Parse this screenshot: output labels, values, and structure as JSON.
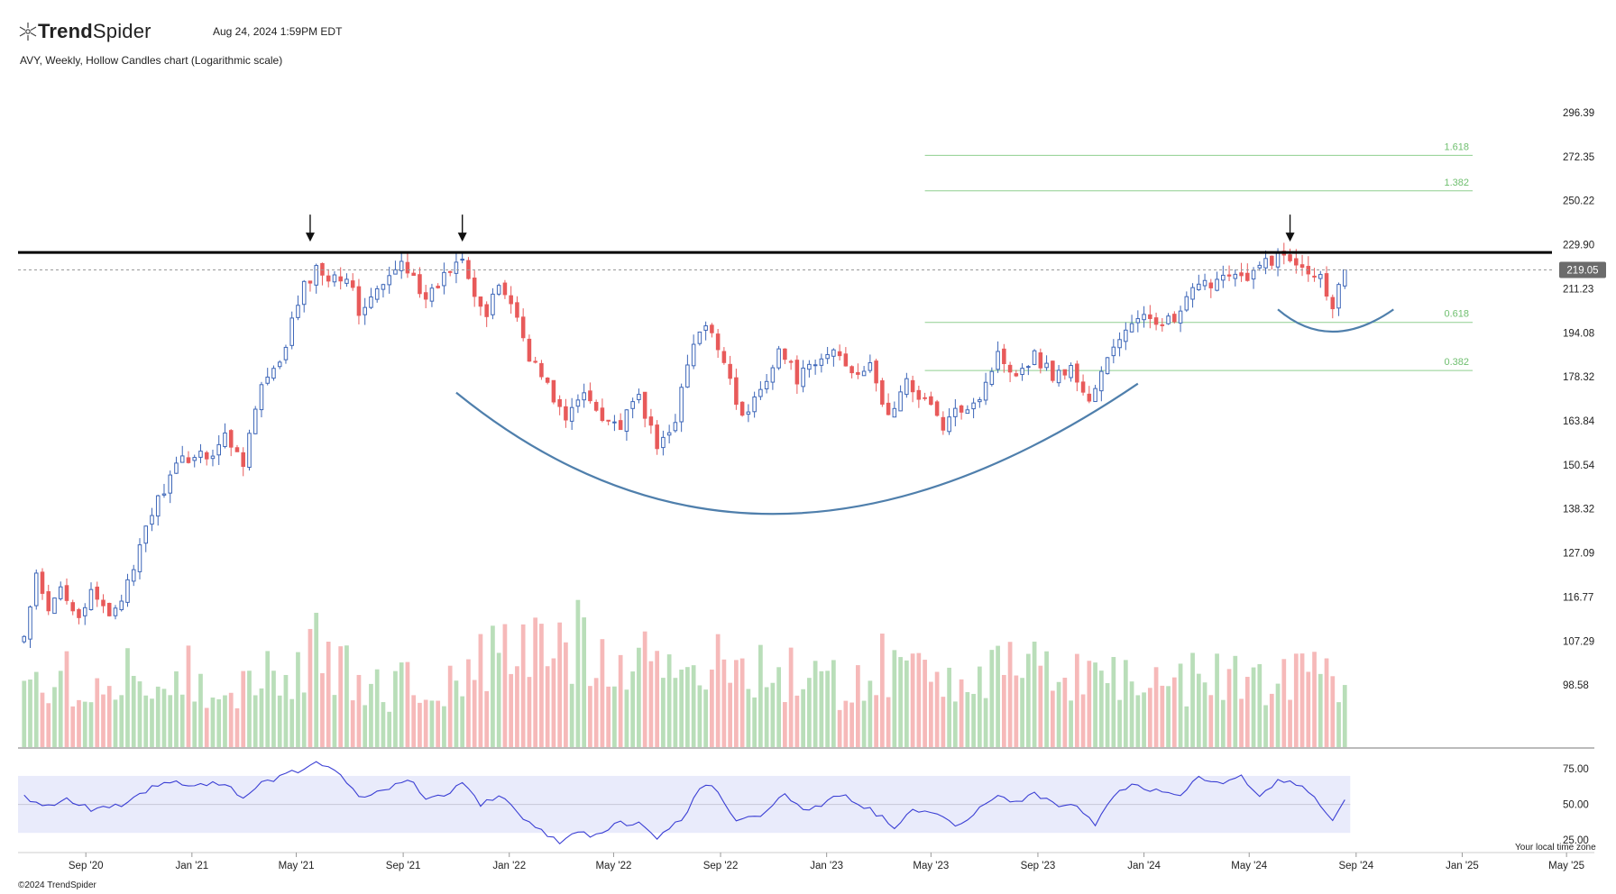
{
  "header": {
    "brand_part1": "Trend",
    "brand_part2": "Spider",
    "timestamp": "Aug 24, 2024 1:59PM EDT",
    "subtitle": "AVY, Weekly, Hollow Candles chart (Logarithmic scale)",
    "logo_icon": "trendspider-logo-icon"
  },
  "footer": {
    "copyright": "©2024 TrendSpider",
    "timezone_note": "Your local time zone"
  },
  "colors": {
    "up": "#3d66b8",
    "down": "#e85a5a",
    "vol_up": "#b9deb9",
    "vol_down": "#f6b9b9",
    "fib": "#8fcf8f",
    "curve": "#4f7fac",
    "rsi": "#3b3fd4",
    "rsi_band": "#e9ebfb",
    "resistance": "#000000",
    "price_tag": "#6b6b6b"
  },
  "chart_data": {
    "type": "candlestick",
    "ticker": "AVY",
    "interval": "Weekly",
    "style": "Hollow Candles",
    "scale": "log",
    "ylim": [
      92,
      316
    ],
    "y_ticks": [
      "296.39",
      "272.35",
      "250.22",
      "229.90",
      "211.23",
      "194.08",
      "178.32",
      "163.84",
      "150.54",
      "138.32",
      "127.09",
      "116.77",
      "107.29",
      "98.58"
    ],
    "x_ticks": [
      "Sep '20",
      "Jan '21",
      "May '21",
      "Sep '21",
      "Jan '22",
      "May '22",
      "Sep '22",
      "Jan '23",
      "May '23",
      "Sep '23",
      "Jan '24",
      "May '24",
      "Sep '24",
      "Jan '25",
      "May '25"
    ],
    "x_range": [
      "2020-06-15",
      "2025-06-02"
    ],
    "current_price": "219.05",
    "current_price_value": 219.05,
    "resistance_level": 226.5,
    "fib_levels": [
      {
        "label": "1.618",
        "value": 273.0
      },
      {
        "label": "1.382",
        "value": 255.0
      },
      {
        "label": "0.618",
        "value": 198.0
      },
      {
        "label": "0.382",
        "value": 180.5
      }
    ],
    "fib_range": [
      "2023-04-24",
      "2025-01-13"
    ],
    "peak_markers": [
      "2021-05-17",
      "2021-11-08",
      "2024-06-17"
    ],
    "price_anchors": [
      [
        "2020-06-22",
        108
      ],
      [
        "2020-07-06",
        121
      ],
      [
        "2020-07-20",
        113
      ],
      [
        "2020-08-03",
        119
      ],
      [
        "2020-08-24",
        113
      ],
      [
        "2020-09-07",
        117
      ],
      [
        "2020-09-28",
        113
      ],
      [
        "2020-10-12",
        117
      ],
      [
        "2020-10-26",
        122
      ],
      [
        "2020-11-09",
        134
      ],
      [
        "2020-11-30",
        144
      ],
      [
        "2020-12-21",
        152
      ],
      [
        "2021-01-11",
        154
      ],
      [
        "2021-01-25",
        154
      ],
      [
        "2021-02-08",
        159
      ],
      [
        "2021-03-01",
        152
      ],
      [
        "2021-03-22",
        175
      ],
      [
        "2021-04-12",
        182
      ],
      [
        "2021-04-26",
        198
      ],
      [
        "2021-05-10",
        212
      ],
      [
        "2021-05-24",
        219
      ],
      [
        "2021-06-07",
        217
      ],
      [
        "2021-06-28",
        217
      ],
      [
        "2021-07-12",
        202
      ],
      [
        "2021-08-02",
        210
      ],
      [
        "2021-08-16",
        215
      ],
      [
        "2021-08-30",
        222
      ],
      [
        "2021-09-13",
        218
      ],
      [
        "2021-09-27",
        205
      ],
      [
        "2021-10-11",
        213
      ],
      [
        "2021-11-08",
        226
      ],
      [
        "2021-11-22",
        210
      ],
      [
        "2021-12-06",
        200
      ],
      [
        "2021-12-20",
        213
      ],
      [
        "2022-01-03",
        206
      ],
      [
        "2022-01-24",
        186
      ],
      [
        "2022-02-14",
        175
      ],
      [
        "2022-03-07",
        164
      ],
      [
        "2022-03-28",
        173
      ],
      [
        "2022-04-18",
        166
      ],
      [
        "2022-05-09",
        162
      ],
      [
        "2022-05-30",
        172
      ],
      [
        "2022-06-20",
        155
      ],
      [
        "2022-07-11",
        165
      ],
      [
        "2022-08-01",
        190
      ],
      [
        "2022-08-15",
        196
      ],
      [
        "2022-09-05",
        185
      ],
      [
        "2022-09-26",
        164
      ],
      [
        "2022-10-17",
        174
      ],
      [
        "2022-11-07",
        188
      ],
      [
        "2022-11-28",
        178
      ],
      [
        "2022-12-19",
        182
      ],
      [
        "2023-01-09",
        188
      ],
      [
        "2023-01-30",
        181
      ],
      [
        "2023-02-20",
        181
      ],
      [
        "2023-03-13",
        165
      ],
      [
        "2023-04-03",
        176
      ],
      [
        "2023-04-24",
        171
      ],
      [
        "2023-05-15",
        162
      ],
      [
        "2023-06-05",
        168
      ],
      [
        "2023-06-26",
        172
      ],
      [
        "2023-07-17",
        186
      ],
      [
        "2023-08-07",
        180
      ],
      [
        "2023-08-28",
        186
      ],
      [
        "2023-09-18",
        179
      ],
      [
        "2023-10-09",
        181
      ],
      [
        "2023-10-30",
        170
      ],
      [
        "2023-11-20",
        184
      ],
      [
        "2023-12-11",
        196
      ],
      [
        "2024-01-08",
        200
      ],
      [
        "2024-02-05",
        198
      ],
      [
        "2024-02-26",
        210
      ],
      [
        "2024-03-18",
        214
      ],
      [
        "2024-04-08",
        219
      ],
      [
        "2024-04-29",
        214
      ],
      [
        "2024-05-20",
        223
      ],
      [
        "2024-06-10",
        225
      ],
      [
        "2024-07-01",
        222
      ],
      [
        "2024-07-22",
        216
      ],
      [
        "2024-08-05",
        205
      ],
      [
        "2024-08-19",
        219
      ]
    ],
    "volume_ylim": [
      0,
      2000
    ],
    "volume_anchors": [
      [
        "2020-06-22",
        1100
      ],
      [
        "2020-08-03",
        900
      ],
      [
        "2020-10-05",
        800
      ],
      [
        "2020-11-30",
        1050
      ],
      [
        "2021-01-25",
        750
      ],
      [
        "2021-04-05",
        900
      ],
      [
        "2021-05-24",
        1150
      ],
      [
        "2021-08-02",
        750
      ],
      [
        "2021-10-25",
        800
      ],
      [
        "2021-12-20",
        1100
      ],
      [
        "2022-02-14",
        1250
      ],
      [
        "2022-04-04",
        1300
      ],
      [
        "2022-06-20",
        1100
      ],
      [
        "2022-08-15",
        950
      ],
      [
        "2022-10-17",
        1050
      ],
      [
        "2022-12-19",
        750
      ],
      [
        "2023-03-13",
        1000
      ],
      [
        "2023-05-29",
        950
      ],
      [
        "2023-08-07",
        900
      ],
      [
        "2023-10-30",
        950
      ],
      [
        "2024-01-08",
        800
      ],
      [
        "2024-03-18",
        850
      ],
      [
        "2024-05-20",
        900
      ],
      [
        "2024-08-19",
        950
      ]
    ],
    "rsi": {
      "ylim": [
        20,
        82
      ],
      "ticks": [
        "75.00",
        "50.00",
        "25.00"
      ],
      "band": [
        30,
        70
      ],
      "midline": 50,
      "anchors": [
        [
          "2020-06-22",
          55
        ],
        [
          "2020-07-13",
          48
        ],
        [
          "2020-08-10",
          54
        ],
        [
          "2020-09-07",
          47
        ],
        [
          "2020-10-12",
          50
        ],
        [
          "2020-11-09",
          60
        ],
        [
          "2020-12-07",
          66
        ],
        [
          "2021-01-04",
          63
        ],
        [
          "2021-02-08",
          65
        ],
        [
          "2021-03-01",
          55
        ],
        [
          "2021-03-22",
          65
        ],
        [
          "2021-04-26",
          72
        ],
        [
          "2021-05-24",
          78
        ],
        [
          "2021-06-21",
          72
        ],
        [
          "2021-07-12",
          56
        ],
        [
          "2021-08-02",
          59
        ],
        [
          "2021-08-23",
          64
        ],
        [
          "2021-09-06",
          68
        ],
        [
          "2021-09-27",
          55
        ],
        [
          "2021-10-18",
          56
        ],
        [
          "2021-11-08",
          64
        ],
        [
          "2021-11-29",
          50
        ],
        [
          "2021-12-20",
          57
        ],
        [
          "2022-01-10",
          44
        ],
        [
          "2022-02-07",
          32
        ],
        [
          "2022-02-28",
          22
        ],
        [
          "2022-03-21",
          30
        ],
        [
          "2022-04-11",
          28
        ],
        [
          "2022-05-02",
          36
        ],
        [
          "2022-05-30",
          38
        ],
        [
          "2022-06-20",
          26
        ],
        [
          "2022-07-18",
          40
        ],
        [
          "2022-08-08",
          60
        ],
        [
          "2022-08-22",
          64
        ],
        [
          "2022-09-19",
          40
        ],
        [
          "2022-10-17",
          43
        ],
        [
          "2022-11-14",
          56
        ],
        [
          "2022-12-05",
          46
        ],
        [
          "2022-12-26",
          50
        ],
        [
          "2023-01-16",
          57
        ],
        [
          "2023-02-20",
          47
        ],
        [
          "2023-03-20",
          34
        ],
        [
          "2023-04-10",
          48
        ],
        [
          "2023-05-08",
          42
        ],
        [
          "2023-05-29",
          36
        ],
        [
          "2023-06-19",
          43
        ],
        [
          "2023-07-17",
          57
        ],
        [
          "2023-08-07",
          52
        ],
        [
          "2023-08-28",
          58
        ],
        [
          "2023-09-25",
          47
        ],
        [
          "2023-10-16",
          50
        ],
        [
          "2023-11-06",
          36
        ],
        [
          "2023-11-27",
          56
        ],
        [
          "2023-12-18",
          63
        ],
        [
          "2024-01-15",
          60
        ],
        [
          "2024-02-12",
          58
        ],
        [
          "2024-03-04",
          68
        ],
        [
          "2024-04-01",
          66
        ],
        [
          "2024-04-22",
          70
        ],
        [
          "2024-05-13",
          55
        ],
        [
          "2024-06-03",
          67
        ],
        [
          "2024-07-01",
          64
        ],
        [
          "2024-07-22",
          50
        ],
        [
          "2024-08-05",
          40
        ],
        [
          "2024-08-19",
          55
        ]
      ]
    },
    "x_end": "2024-08-19",
    "annotations": {
      "rounding_bottom_curve": {
        "start": [
          "2021-11-01",
          173
        ],
        "bottom": [
          "2022-11-07",
          137
        ],
        "end": [
          "2023-12-25",
          176
        ]
      },
      "handle_curve": {
        "start": [
          "2024-06-03",
          203
        ],
        "bottom": [
          "2024-08-05",
          194.5
        ],
        "end": [
          "2024-10-14",
          203
        ]
      }
    }
  }
}
